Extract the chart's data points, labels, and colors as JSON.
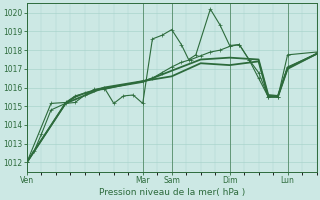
{
  "bg_color": "#cce8e4",
  "grid_color": "#aad4cc",
  "line_color": "#2d6b3c",
  "title": "Pression niveau de la mer( hPa )",
  "ylim": [
    1011.5,
    1020.5
  ],
  "yticks": [
    1012,
    1013,
    1014,
    1015,
    1016,
    1017,
    1018,
    1019,
    1020
  ],
  "xtick_labels": [
    "Ven",
    "Mar",
    "Sam",
    "Dim",
    "Lun"
  ],
  "xtick_positions": [
    0,
    48,
    60,
    84,
    108
  ],
  "xlim": [
    0,
    120
  ],
  "series1_dots": [
    [
      0,
      1012.0
    ],
    [
      3,
      1012.6
    ],
    [
      6,
      1013.5
    ],
    [
      10,
      1014.8
    ],
    [
      16,
      1015.15
    ],
    [
      20,
      1015.2
    ],
    [
      24,
      1015.6
    ],
    [
      28,
      1015.9
    ],
    [
      32,
      1016.0
    ],
    [
      36,
      1015.15
    ],
    [
      40,
      1015.55
    ],
    [
      44,
      1015.6
    ],
    [
      48,
      1015.15
    ],
    [
      52,
      1018.6
    ],
    [
      56,
      1018.8
    ],
    [
      60,
      1019.1
    ],
    [
      64,
      1018.3
    ],
    [
      67,
      1017.5
    ],
    [
      70,
      1017.75
    ],
    [
      76,
      1020.2
    ],
    [
      80,
      1019.35
    ],
    [
      84,
      1018.25
    ],
    [
      88,
      1018.3
    ],
    [
      92,
      1017.5
    ],
    [
      96,
      1016.8
    ],
    [
      100,
      1015.5
    ],
    [
      104,
      1015.5
    ],
    [
      108,
      1017.75
    ],
    [
      120,
      1017.9
    ]
  ],
  "series2_smooth": [
    [
      0,
      1012.0
    ],
    [
      10,
      1015.15
    ],
    [
      16,
      1015.2
    ],
    [
      20,
      1015.55
    ],
    [
      24,
      1015.7
    ],
    [
      28,
      1015.85
    ],
    [
      32,
      1015.9
    ],
    [
      48,
      1016.35
    ],
    [
      52,
      1016.5
    ],
    [
      56,
      1016.8
    ],
    [
      60,
      1017.1
    ],
    [
      64,
      1017.35
    ],
    [
      68,
      1017.5
    ],
    [
      72,
      1017.7
    ],
    [
      76,
      1017.9
    ],
    [
      80,
      1018.0
    ],
    [
      84,
      1018.2
    ],
    [
      88,
      1018.3
    ],
    [
      92,
      1017.5
    ],
    [
      96,
      1016.5
    ],
    [
      100,
      1015.5
    ],
    [
      104,
      1015.5
    ],
    [
      108,
      1017.1
    ],
    [
      120,
      1017.8
    ]
  ],
  "series3_smooth": [
    [
      0,
      1012.0
    ],
    [
      16,
      1015.15
    ],
    [
      20,
      1015.5
    ],
    [
      24,
      1015.7
    ],
    [
      28,
      1015.85
    ],
    [
      32,
      1015.95
    ],
    [
      48,
      1016.3
    ],
    [
      60,
      1016.9
    ],
    [
      72,
      1017.5
    ],
    [
      84,
      1017.6
    ],
    [
      96,
      1017.5
    ],
    [
      100,
      1015.6
    ],
    [
      104,
      1015.55
    ],
    [
      108,
      1017.05
    ],
    [
      120,
      1017.8
    ]
  ],
  "series4_smooth": [
    [
      0,
      1012.0
    ],
    [
      16,
      1015.15
    ],
    [
      32,
      1016.0
    ],
    [
      60,
      1016.6
    ],
    [
      72,
      1017.3
    ],
    [
      84,
      1017.2
    ],
    [
      96,
      1017.4
    ],
    [
      100,
      1015.5
    ],
    [
      104,
      1015.5
    ],
    [
      108,
      1017.0
    ],
    [
      120,
      1017.8
    ]
  ]
}
